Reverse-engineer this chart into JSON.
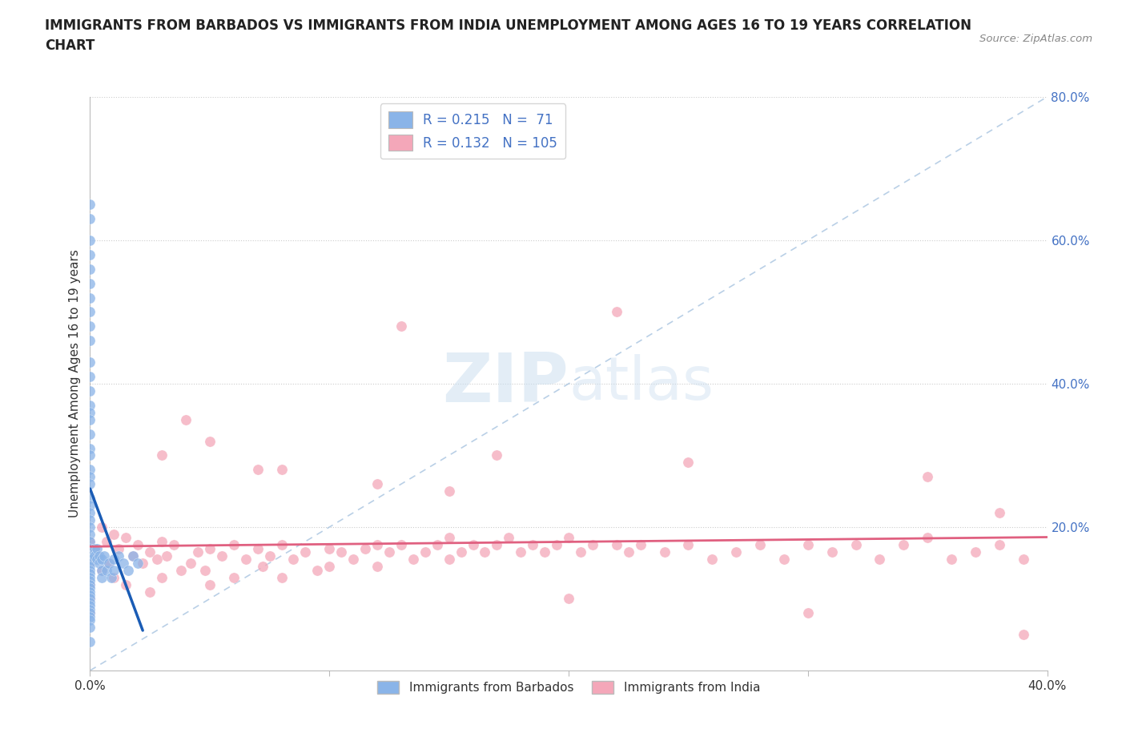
{
  "title": "IMMIGRANTS FROM BARBADOS VS IMMIGRANTS FROM INDIA UNEMPLOYMENT AMONG AGES 16 TO 19 YEARS CORRELATION\nCHART",
  "source_text": "Source: ZipAtlas.com",
  "ylabel": "Unemployment Among Ages 16 to 19 years",
  "xlim": [
    0.0,
    0.4
  ],
  "ylim": [
    0.0,
    0.8
  ],
  "barbados_color": "#8ab4e8",
  "india_color": "#f4a7b9",
  "barbados_line_color": "#1a5cb5",
  "india_line_color": "#e06080",
  "diag_line_color": "#a8c4e0",
  "barbados_R": 0.215,
  "barbados_N": 71,
  "india_R": 0.132,
  "india_N": 105,
  "watermark": "ZIPatlas",
  "legend_barbados": "Immigrants from Barbados",
  "legend_india": "Immigrants from India",
  "grid_color": "#cccccc",
  "right_axis_color": "#4472c4",
  "barbados_x": [
    0.0,
    0.0,
    0.0,
    0.0,
    0.0,
    0.0,
    0.0,
    0.0,
    0.0,
    0.0,
    0.0,
    0.0,
    0.0,
    0.0,
    0.0,
    0.0,
    0.0,
    0.0,
    0.0,
    0.0,
    0.0,
    0.0,
    0.0,
    0.0,
    0.0,
    0.0,
    0.0,
    0.0,
    0.0,
    0.0,
    0.0,
    0.0,
    0.0,
    0.0,
    0.0,
    0.0,
    0.0,
    0.0,
    0.0,
    0.0,
    0.0,
    0.0,
    0.0,
    0.0,
    0.0,
    0.0,
    0.0,
    0.0,
    0.0,
    0.0,
    0.002,
    0.002,
    0.003,
    0.003,
    0.004,
    0.004,
    0.005,
    0.005,
    0.005,
    0.006,
    0.007,
    0.008,
    0.009,
    0.01,
    0.01,
    0.012,
    0.014,
    0.016,
    0.018,
    0.02,
    0.0
  ],
  "barbados_y": [
    0.65,
    0.63,
    0.6,
    0.58,
    0.56,
    0.54,
    0.52,
    0.5,
    0.48,
    0.46,
    0.43,
    0.41,
    0.39,
    0.37,
    0.36,
    0.35,
    0.33,
    0.31,
    0.3,
    0.28,
    0.27,
    0.26,
    0.24,
    0.23,
    0.22,
    0.21,
    0.2,
    0.19,
    0.18,
    0.17,
    0.16,
    0.155,
    0.15,
    0.145,
    0.14,
    0.135,
    0.13,
    0.125,
    0.12,
    0.115,
    0.11,
    0.105,
    0.1,
    0.095,
    0.09,
    0.085,
    0.08,
    0.075,
    0.07,
    0.06,
    0.17,
    0.16,
    0.17,
    0.155,
    0.16,
    0.15,
    0.155,
    0.14,
    0.13,
    0.16,
    0.14,
    0.15,
    0.13,
    0.155,
    0.14,
    0.16,
    0.15,
    0.14,
    0.16,
    0.15,
    0.04
  ],
  "india_x": [
    0.0,
    0.0,
    0.0,
    0.0,
    0.0,
    0.002,
    0.003,
    0.005,
    0.005,
    0.007,
    0.008,
    0.01,
    0.01,
    0.012,
    0.015,
    0.015,
    0.018,
    0.02,
    0.022,
    0.025,
    0.025,
    0.028,
    0.03,
    0.03,
    0.032,
    0.035,
    0.038,
    0.04,
    0.042,
    0.045,
    0.048,
    0.05,
    0.05,
    0.055,
    0.06,
    0.06,
    0.065,
    0.07,
    0.072,
    0.075,
    0.08,
    0.08,
    0.085,
    0.09,
    0.095,
    0.1,
    0.1,
    0.105,
    0.11,
    0.115,
    0.12,
    0.12,
    0.125,
    0.13,
    0.135,
    0.14,
    0.145,
    0.15,
    0.15,
    0.155,
    0.16,
    0.165,
    0.17,
    0.175,
    0.18,
    0.185,
    0.19,
    0.195,
    0.2,
    0.205,
    0.21,
    0.22,
    0.225,
    0.23,
    0.24,
    0.25,
    0.26,
    0.27,
    0.28,
    0.29,
    0.3,
    0.31,
    0.32,
    0.33,
    0.34,
    0.35,
    0.36,
    0.37,
    0.38,
    0.39,
    0.03,
    0.07,
    0.12,
    0.17,
    0.22,
    0.13,
    0.25,
    0.35,
    0.05,
    0.15,
    0.2,
    0.3,
    0.39,
    0.08,
    0.38
  ],
  "india_y": [
    0.18,
    0.15,
    0.12,
    0.1,
    0.08,
    0.17,
    0.16,
    0.2,
    0.14,
    0.18,
    0.15,
    0.19,
    0.13,
    0.17,
    0.185,
    0.12,
    0.16,
    0.175,
    0.15,
    0.165,
    0.11,
    0.155,
    0.18,
    0.13,
    0.16,
    0.175,
    0.14,
    0.35,
    0.15,
    0.165,
    0.14,
    0.17,
    0.12,
    0.16,
    0.175,
    0.13,
    0.155,
    0.17,
    0.145,
    0.16,
    0.175,
    0.13,
    0.155,
    0.165,
    0.14,
    0.17,
    0.145,
    0.165,
    0.155,
    0.17,
    0.175,
    0.145,
    0.165,
    0.175,
    0.155,
    0.165,
    0.175,
    0.185,
    0.155,
    0.165,
    0.175,
    0.165,
    0.175,
    0.185,
    0.165,
    0.175,
    0.165,
    0.175,
    0.185,
    0.165,
    0.175,
    0.175,
    0.165,
    0.175,
    0.165,
    0.175,
    0.155,
    0.165,
    0.175,
    0.155,
    0.175,
    0.165,
    0.175,
    0.155,
    0.175,
    0.185,
    0.155,
    0.165,
    0.175,
    0.155,
    0.3,
    0.28,
    0.26,
    0.3,
    0.5,
    0.48,
    0.29,
    0.27,
    0.32,
    0.25,
    0.1,
    0.08,
    0.05,
    0.28,
    0.22
  ]
}
